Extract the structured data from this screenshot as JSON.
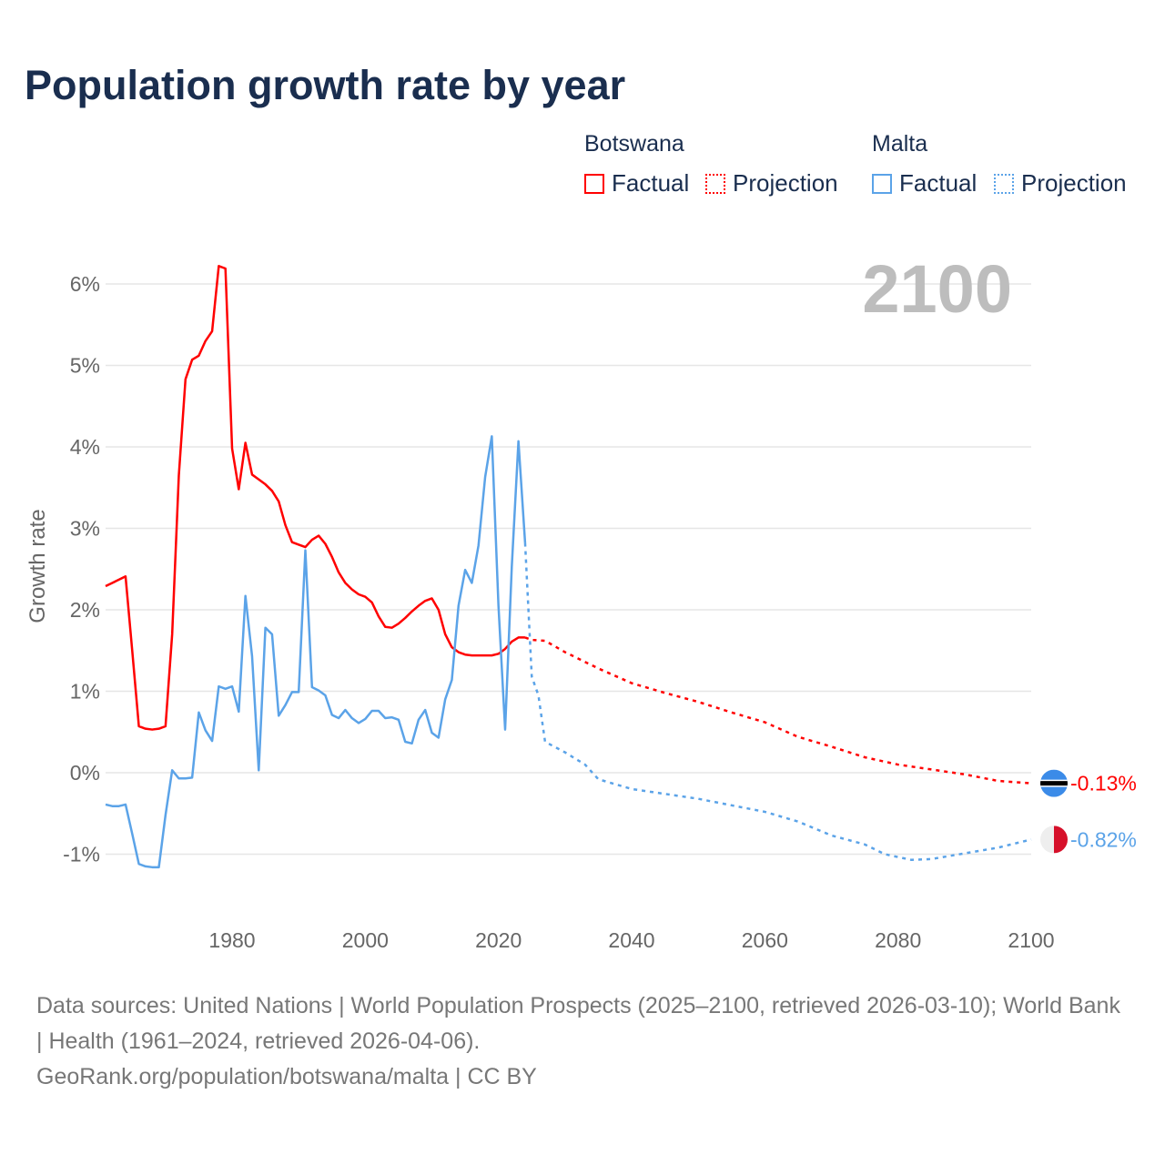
{
  "title": "Population growth rate by year",
  "legend": {
    "groups": [
      {
        "country": "Botswana",
        "color": "#ff0000",
        "factual": "Factual",
        "projection": "Projection"
      },
      {
        "country": "Malta",
        "color": "#5ba3e8",
        "factual": "Factual",
        "projection": "Projection"
      }
    ]
  },
  "source": {
    "line1": "Data sources: United Nations | World Population Prospects (2025–2100, retrieved 2026-03-10); World Bank | Health (1961–2024, retrieved 2026-04-06).",
    "line2": "GeoRank.org/population/botswana/malta | CC BY"
  },
  "chart_data": {
    "type": "line",
    "title": "Population growth rate by year",
    "xlabel": "",
    "ylabel": "Growth rate",
    "current_year_label": "2100",
    "xlim": [
      1961,
      2100
    ],
    "ylim": [
      -1.8,
      6.4
    ],
    "xticks": [
      1980,
      2000,
      2020,
      2040,
      2060,
      2080,
      2100
    ],
    "yticks": [
      -1,
      0,
      1,
      2,
      3,
      4,
      5,
      6
    ],
    "ytick_labels": [
      "-1%",
      "0%",
      "1%",
      "2%",
      "3%",
      "4%",
      "5%",
      "6%"
    ],
    "grid": true,
    "series": [
      {
        "name": "Botswana",
        "color": "#ff0000",
        "flag": "botswana-flag",
        "end_label": "-0.13%",
        "factual": {
          "x_start": 1961,
          "values": [
            2.29,
            2.33,
            2.37,
            2.41,
            1.5,
            0.57,
            0.54,
            0.53,
            0.54,
            0.57,
            1.7,
            3.65,
            4.83,
            5.07,
            5.12,
            5.3,
            5.42,
            6.22,
            6.19,
            3.98,
            3.48,
            4.05,
            3.66,
            3.6,
            3.54,
            3.46,
            3.33,
            3.04,
            2.83,
            2.8,
            2.77,
            2.86,
            2.91,
            2.81,
            2.65,
            2.46,
            2.33,
            2.25,
            2.19,
            2.16,
            2.09,
            1.92,
            1.79,
            1.78,
            1.83,
            1.9,
            1.98,
            2.05,
            2.11,
            2.14,
            2.0,
            1.7,
            1.54,
            1.48,
            1.45,
            1.44,
            1.44,
            1.44,
            1.44,
            1.46,
            1.52,
            1.61,
            1.66,
            1.66
          ]
        },
        "projection": {
          "x": [
            2024,
            2025,
            2027,
            2030,
            2035,
            2040,
            2045,
            2050,
            2055,
            2060,
            2065,
            2070,
            2075,
            2080,
            2085,
            2090,
            2095,
            2100
          ],
          "values": [
            1.66,
            1.63,
            1.62,
            1.48,
            1.28,
            1.1,
            0.98,
            0.87,
            0.74,
            0.62,
            0.44,
            0.32,
            0.19,
            0.1,
            0.04,
            -0.02,
            -0.1,
            -0.13
          ]
        }
      },
      {
        "name": "Malta",
        "color": "#5ba3e8",
        "flag": "malta-flag",
        "end_label": "-0.82%",
        "factual": {
          "x_start": 1961,
          "values": [
            -0.39,
            -0.41,
            -0.41,
            -0.39,
            -0.75,
            -1.12,
            -1.15,
            -1.16,
            -1.16,
            -0.52,
            0.03,
            -0.07,
            -0.07,
            -0.06,
            0.74,
            0.52,
            0.39,
            1.06,
            1.03,
            1.06,
            0.75,
            2.17,
            1.43,
            0.03,
            1.78,
            1.7,
            0.7,
            0.83,
            0.99,
            0.99,
            2.73,
            1.05,
            1.01,
            0.95,
            0.71,
            0.67,
            0.77,
            0.67,
            0.61,
            0.66,
            0.76,
            0.76,
            0.67,
            0.68,
            0.65,
            0.38,
            0.36,
            0.65,
            0.77,
            0.49,
            0.43,
            0.9,
            1.14,
            2.05,
            2.49,
            2.33,
            2.79,
            3.63,
            4.13,
            2.05,
            0.53,
            2.53,
            4.07,
            2.82
          ]
        },
        "projection": {
          "x": [
            2024,
            2025,
            2026,
            2027,
            2030,
            2033,
            2035,
            2040,
            2045,
            2050,
            2055,
            2060,
            2065,
            2070,
            2075,
            2078,
            2082,
            2085,
            2090,
            2095,
            2100
          ],
          "values": [
            2.82,
            1.18,
            0.95,
            0.38,
            0.25,
            0.1,
            -0.08,
            -0.2,
            -0.26,
            -0.32,
            -0.4,
            -0.48,
            -0.6,
            -0.77,
            -0.88,
            -1.0,
            -1.07,
            -1.06,
            -0.99,
            -0.92,
            -0.82
          ]
        }
      }
    ]
  }
}
